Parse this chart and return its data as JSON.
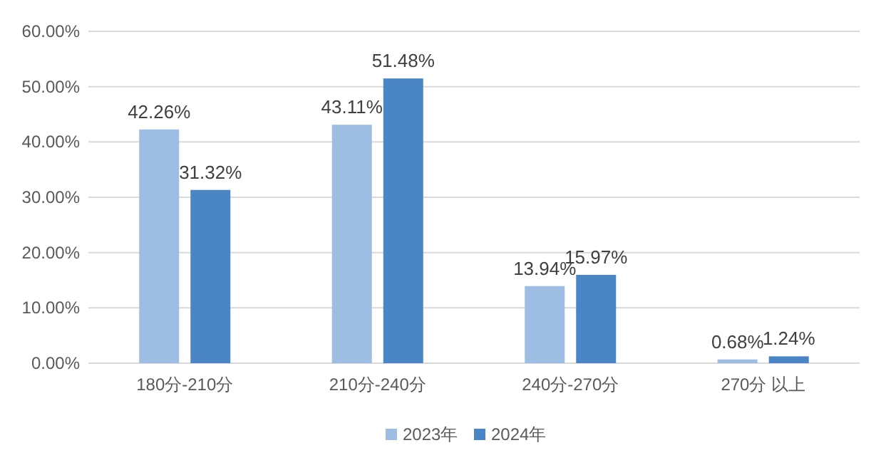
{
  "chart_data": {
    "type": "bar",
    "categories": [
      "180分-210分",
      "210分-240分",
      "240分-270分",
      "270分 以上"
    ],
    "series": [
      {
        "name": "2023年",
        "color": "#9dbde3",
        "values": [
          42.26,
          43.11,
          13.94,
          0.68
        ],
        "value_labels": [
          "42.26%",
          "43.11%",
          "13.94%",
          "0.68%"
        ]
      },
      {
        "name": "2024年",
        "color": "#4a86c5",
        "values": [
          31.32,
          51.48,
          15.97,
          1.24
        ],
        "value_labels": [
          "31.32%",
          "51.48%",
          "15.97%",
          "1.24%"
        ]
      }
    ],
    "ylim": [
      0,
      60
    ],
    "yticks": [
      {
        "value": 0,
        "label": "0.00%"
      },
      {
        "value": 10,
        "label": "10.00%"
      },
      {
        "value": 20,
        "label": "20.00%"
      },
      {
        "value": 30,
        "label": "30.00%"
      },
      {
        "value": 40,
        "label": "40.00%"
      },
      {
        "value": 50,
        "label": "50.00%"
      },
      {
        "value": 60,
        "label": "60.00%"
      }
    ],
    "grid": "y",
    "legend": "bottom"
  }
}
